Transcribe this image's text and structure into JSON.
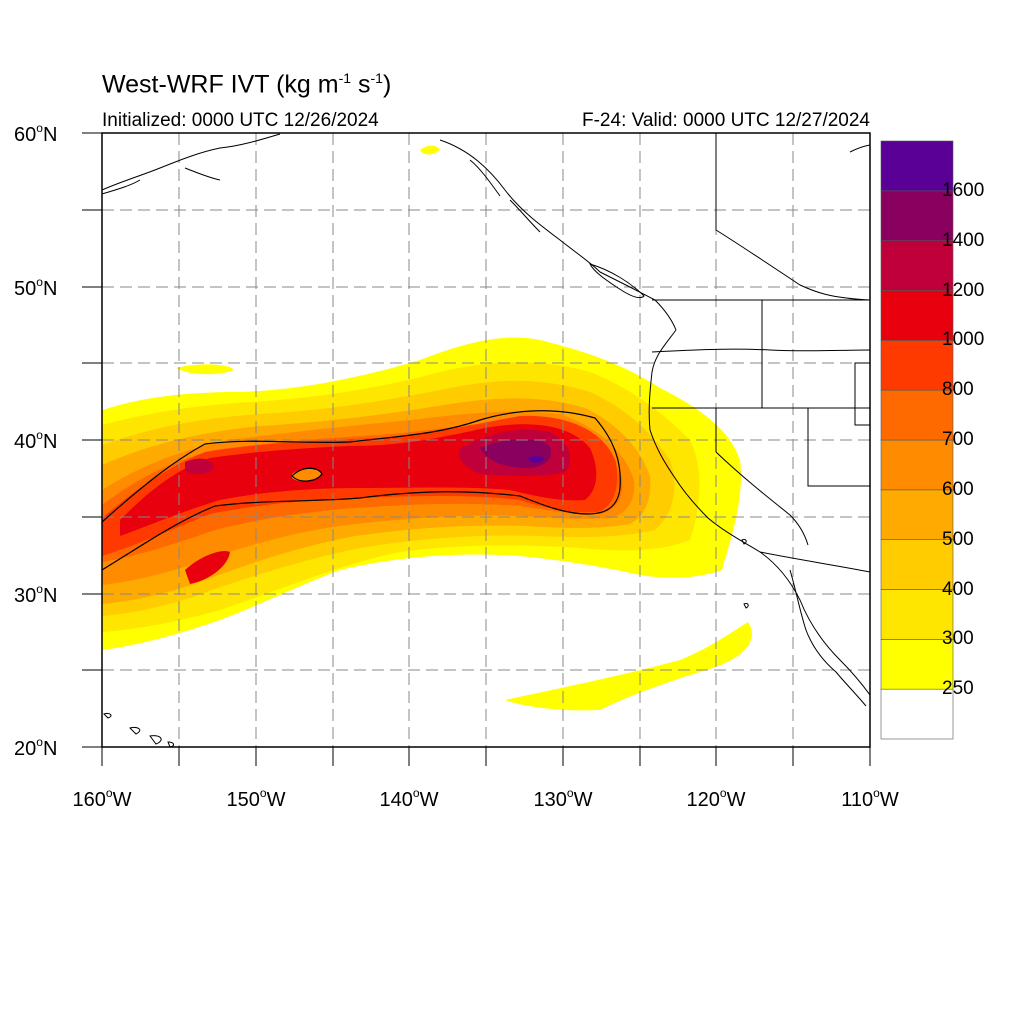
{
  "header": {
    "title_main": "West-WRF IVT (kg m",
    "title_exp1": "-1",
    "title_mid": "s",
    "title_exp2": "-1",
    "title_end": ")",
    "initialized": "Initialized: 0000 UTC 12/26/2024",
    "valid": "F-24: Valid: 0000 UTC 12/27/2024"
  },
  "axes": {
    "lat_labels": [
      {
        "value": "60",
        "unit": "N"
      },
      {
        "value": "50",
        "unit": "N"
      },
      {
        "value": "40",
        "unit": "N"
      },
      {
        "value": "30",
        "unit": "N"
      },
      {
        "value": "20",
        "unit": "N"
      }
    ],
    "lon_labels": [
      {
        "value": "160",
        "unit": "W"
      },
      {
        "value": "150",
        "unit": "W"
      },
      {
        "value": "140",
        "unit": "W"
      },
      {
        "value": "130",
        "unit": "W"
      },
      {
        "value": "120",
        "unit": "W"
      },
      {
        "value": "110",
        "unit": "W"
      }
    ],
    "lat_range": [
      20,
      60
    ],
    "lon_range": [
      -160,
      -110
    ]
  },
  "colorbar": {
    "levels": [
      "250",
      "300",
      "400",
      "500",
      "600",
      "700",
      "800",
      "1000",
      "1200",
      "1400",
      "1600"
    ],
    "colors": [
      "#ffffff",
      "#ffff00",
      "#ffe600",
      "#ffcc00",
      "#ffaa00",
      "#ff8c00",
      "#ff6a00",
      "#ff3a00",
      "#e8000e",
      "#c0003a",
      "#8a005e",
      "#5a0096"
    ]
  },
  "contour_level": 800
}
